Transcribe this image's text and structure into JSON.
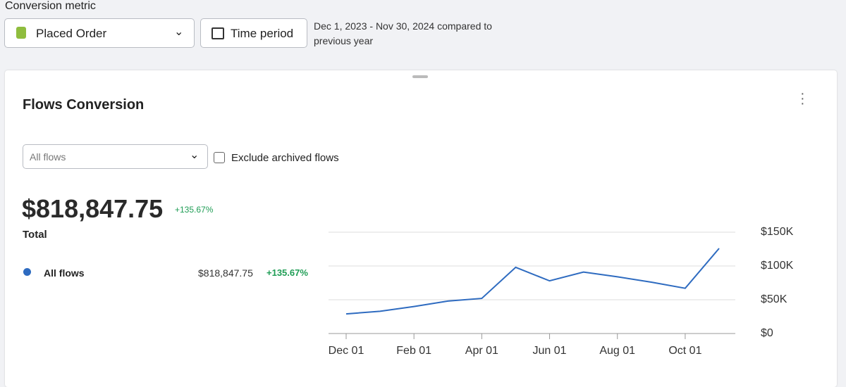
{
  "header": {
    "metric_label": "Conversion metric",
    "metric_select": "Placed Order",
    "period_button": "Time period",
    "period_text": "Dec 1, 2023 - Nov 30, 2024 compared to previous year"
  },
  "card": {
    "title": "Flows Conversion",
    "flow_select": "All flows",
    "exclude_label": "Exclude archived flows",
    "total": "$818,847.75",
    "total_change": "+135.67%",
    "total_label": "Total",
    "row_value": "$818,847.75",
    "row_change": "+135.67%"
  },
  "chart_data": {
    "type": "line",
    "categories": [
      "Dec 01",
      null,
      "Feb 01",
      null,
      "Apr 01",
      null,
      "Jun 01",
      null,
      "Aug 01",
      null,
      "Oct 01",
      null
    ],
    "series": [
      {
        "name": "All flows",
        "color": "#2e6bc0",
        "values": [
          29000,
          33000,
          40000,
          48000,
          52000,
          98000,
          78000,
          91000,
          84000,
          76000,
          67000,
          126000
        ]
      }
    ],
    "ylim": [
      0,
      150000
    ],
    "yticks": [
      {
        "value": 0,
        "label": "$0"
      },
      {
        "value": 50000,
        "label": "$50K"
      },
      {
        "value": 100000,
        "label": "$100K"
      },
      {
        "value": 150000,
        "label": "$150K"
      }
    ],
    "grid": true
  }
}
